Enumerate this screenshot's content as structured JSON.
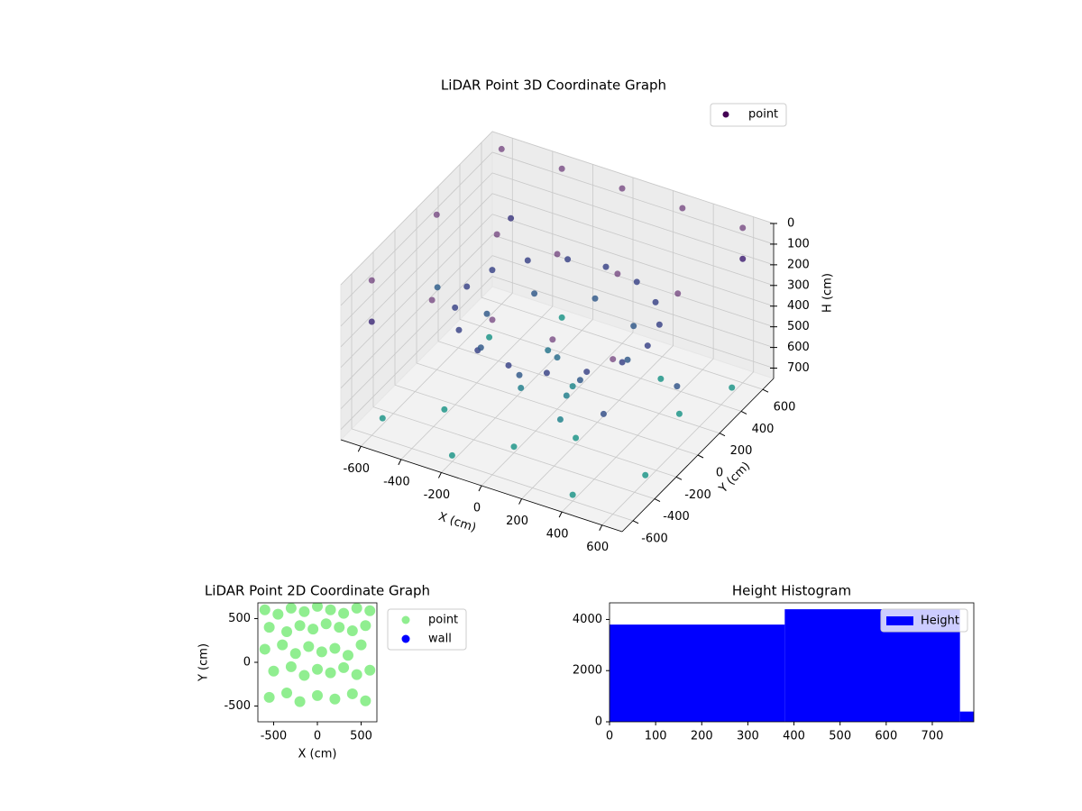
{
  "chart_data": [
    {
      "type": "scatter3d",
      "title": "LiDAR Point 3D Coordinate Graph",
      "xlabel": "X (cm)",
      "ylabel": "Y (cm)",
      "zlabel": "H (cm)",
      "xlim": [
        -700,
        700
      ],
      "ylim": [
        -700,
        700
      ],
      "zlim": [
        750,
        0
      ],
      "xticks": [
        -600,
        -400,
        -200,
        0,
        200,
        400,
        600
      ],
      "yticks": [
        -600,
        -400,
        -200,
        0,
        200,
        400,
        600
      ],
      "zticks": [
        0,
        100,
        200,
        300,
        400,
        500,
        600,
        700
      ],
      "grid": true,
      "legend": "upper right",
      "colormap": "viridis",
      "series": [
        {
          "name": "point",
          "color": "#440154",
          "x": [
            -600,
            -300,
            0,
            300,
            600,
            -600,
            -300,
            0,
            300,
            600,
            -600,
            -300,
            0,
            300,
            600,
            -600,
            600,
            -500,
            500,
            -650,
            650,
            450,
            416,
            318,
            172,
            0,
            -172,
            -318,
            -416,
            -450,
            -416,
            -318,
            -172,
            0,
            172,
            318,
            416,
            350,
            247,
            0,
            -247,
            -350,
            -247,
            0,
            247,
            0,
            100,
            -100,
            50,
            -600,
            -400,
            -200,
            0,
            200,
            400,
            600,
            500,
            600,
            300,
            -500,
            -300,
            -100,
            150
          ],
          "y": [
            -600,
            -600,
            -600,
            -600,
            -600,
            0,
            0,
            0,
            0,
            0,
            600,
            600,
            600,
            600,
            600,
            -600,
            600,
            500,
            -500,
            100,
            -100,
            0,
            172,
            318,
            416,
            450,
            416,
            318,
            172,
            0,
            -172,
            -318,
            -416,
            -450,
            -416,
            -318,
            -172,
            0,
            247,
            350,
            247,
            0,
            -247,
            -350,
            -247,
            0,
            -100,
            100,
            50,
            -500,
            -300,
            -600,
            -400,
            -200,
            -600,
            -300,
            200,
            500,
            400,
            300,
            600,
            -150,
            -250
          ],
          "z": [
            0,
            0,
            0,
            0,
            0,
            0,
            0,
            0,
            0,
            0,
            0,
            0,
            0,
            0,
            0,
            200,
            150,
            250,
            350,
            420,
            380,
            300,
            300,
            300,
            300,
            300,
            300,
            300,
            300,
            300,
            300,
            300,
            300,
            300,
            300,
            300,
            300,
            400,
            400,
            400,
            400,
            400,
            400,
            400,
            400,
            500,
            600,
            550,
            650,
            720,
            720,
            720,
            720,
            720,
            720,
            720,
            720,
            720,
            720,
            720,
            720,
            600,
            620
          ]
        }
      ]
    },
    {
      "type": "scatter",
      "title": "LiDAR Point 2D Coordinate Graph",
      "xlabel": "X (cm)",
      "ylabel": "Y (cm)",
      "xlim": [
        -680,
        680
      ],
      "ylim": [
        -680,
        680
      ],
      "xticks": [
        -500,
        0,
        500
      ],
      "yticks": [
        -500,
        0,
        500
      ],
      "legend": "outside right",
      "series": [
        {
          "name": "point",
          "color": "#90ee90",
          "x": [
            -600,
            -450,
            -300,
            -150,
            0,
            150,
            300,
            450,
            600,
            -550,
            -350,
            -200,
            -50,
            100,
            250,
            400,
            550,
            -600,
            -400,
            -250,
            -100,
            50,
            200,
            350,
            500,
            -500,
            -300,
            -150,
            0,
            150,
            300,
            450,
            600,
            -550,
            -350,
            -200,
            0,
            200,
            400,
            550
          ],
          "y": [
            600,
            550,
            620,
            580,
            640,
            600,
            560,
            620,
            590,
            400,
            350,
            420,
            380,
            440,
            400,
            360,
            420,
            150,
            200,
            100,
            180,
            120,
            160,
            80,
            200,
            -100,
            -50,
            -150,
            -80,
            -120,
            -60,
            -140,
            -90,
            -400,
            -350,
            -450,
            -380,
            -420,
            -360,
            -440
          ]
        },
        {
          "name": "wall",
          "color": "#0000ff",
          "x": [],
          "y": []
        }
      ]
    },
    {
      "type": "histogram",
      "title": "Height Histogram",
      "bins": [
        0,
        380,
        760,
        790
      ],
      "xlim": [
        0,
        790
      ],
      "ylim": [
        0,
        4650
      ],
      "xticks": [
        0,
        100,
        200,
        300,
        400,
        500,
        600,
        700
      ],
      "yticks": [
        0,
        2000,
        4000
      ],
      "legend": "upper right",
      "series": [
        {
          "name": "Height",
          "color": "#0000ff",
          "values": [
            3800,
            4400,
            400
          ]
        }
      ]
    }
  ]
}
